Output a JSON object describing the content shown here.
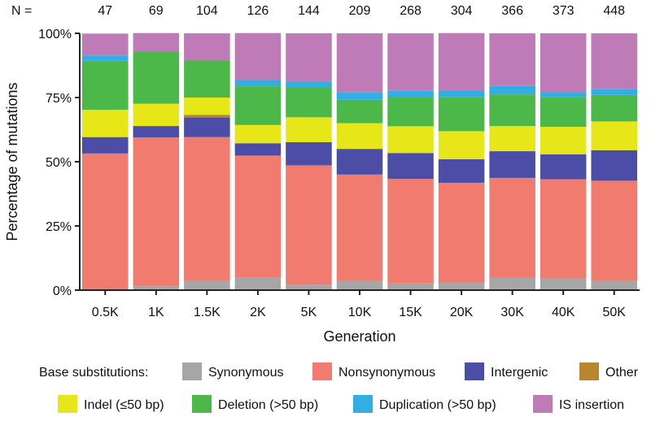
{
  "chart_data": {
    "type": "bar",
    "stacked": true,
    "normalized": true,
    "xlabel": "Generation",
    "ylabel": "Percentage of mutations",
    "n_label": "N =",
    "yticks": [
      "0%",
      "25%",
      "50%",
      "75%",
      "100%"
    ],
    "ylim": [
      0,
      100
    ],
    "categories": [
      "0.5K",
      "1K",
      "1.5K",
      "2K",
      "5K",
      "10K",
      "15K",
      "20K",
      "30K",
      "40K",
      "50K"
    ],
    "n_values": [
      "47",
      "69",
      "104",
      "126",
      "144",
      "209",
      "268",
      "304",
      "366",
      "373",
      "448"
    ],
    "legend_group_label": "Base substitutions:",
    "series": [
      {
        "name": "Synonymous",
        "color": "#a6a6a6",
        "values": [
          0,
          1.5,
          3.8,
          4.8,
          2.1,
          3.8,
          2.6,
          3.0,
          4.9,
          4.6,
          3.8
        ]
      },
      {
        "name": "Nonsynonymous",
        "color": "#f27b70",
        "values": [
          53.2,
          58.0,
          55.8,
          47.6,
          46.5,
          41.2,
          40.7,
          38.8,
          38.8,
          38.6,
          38.8
        ]
      },
      {
        "name": "Intergenic",
        "color": "#4b4da6",
        "values": [
          6.4,
          4.4,
          7.7,
          4.8,
          9.0,
          10.0,
          10.1,
          9.2,
          10.4,
          9.7,
          11.9
        ]
      },
      {
        "name": "Other",
        "color": "#b8862d",
        "values": [
          0,
          0,
          1.0,
          0,
          0,
          0,
          0,
          0,
          0,
          0,
          0
        ]
      },
      {
        "name": "Indel (≤50 bp)",
        "color": "#e6e619",
        "values": [
          10.6,
          8.7,
          6.7,
          7.1,
          9.7,
          10.0,
          10.4,
          10.9,
          9.8,
          10.7,
          11.2
        ]
      },
      {
        "name": "Deletion (>50 bp)",
        "color": "#4cb849",
        "values": [
          19.1,
          20.3,
          14.4,
          15.1,
          11.8,
          9.1,
          11.2,
          13.2,
          12.3,
          11.5,
          10.3
        ]
      },
      {
        "name": "Duplication (>50 bp)",
        "color": "#33aee3",
        "values": [
          2.1,
          0,
          0,
          2.4,
          2.1,
          2.9,
          2.6,
          2.6,
          3.3,
          2.1,
          2.2
        ]
      },
      {
        "name": "IS insertion",
        "color": "#bf7bb7",
        "values": [
          8.5,
          7.2,
          10.6,
          18.3,
          18.8,
          23.0,
          22.4,
          22.4,
          20.5,
          22.8,
          21.8
        ]
      }
    ],
    "legend": {
      "placement": "bottom",
      "rows": [
        [
          "Synonymous",
          "Nonsynonymous",
          "Intergenic",
          "Other"
        ],
        [
          "Indel (≤50 bp)",
          "Deletion (>50 bp)",
          "Duplication (>50 bp)",
          "IS insertion"
        ]
      ]
    }
  }
}
